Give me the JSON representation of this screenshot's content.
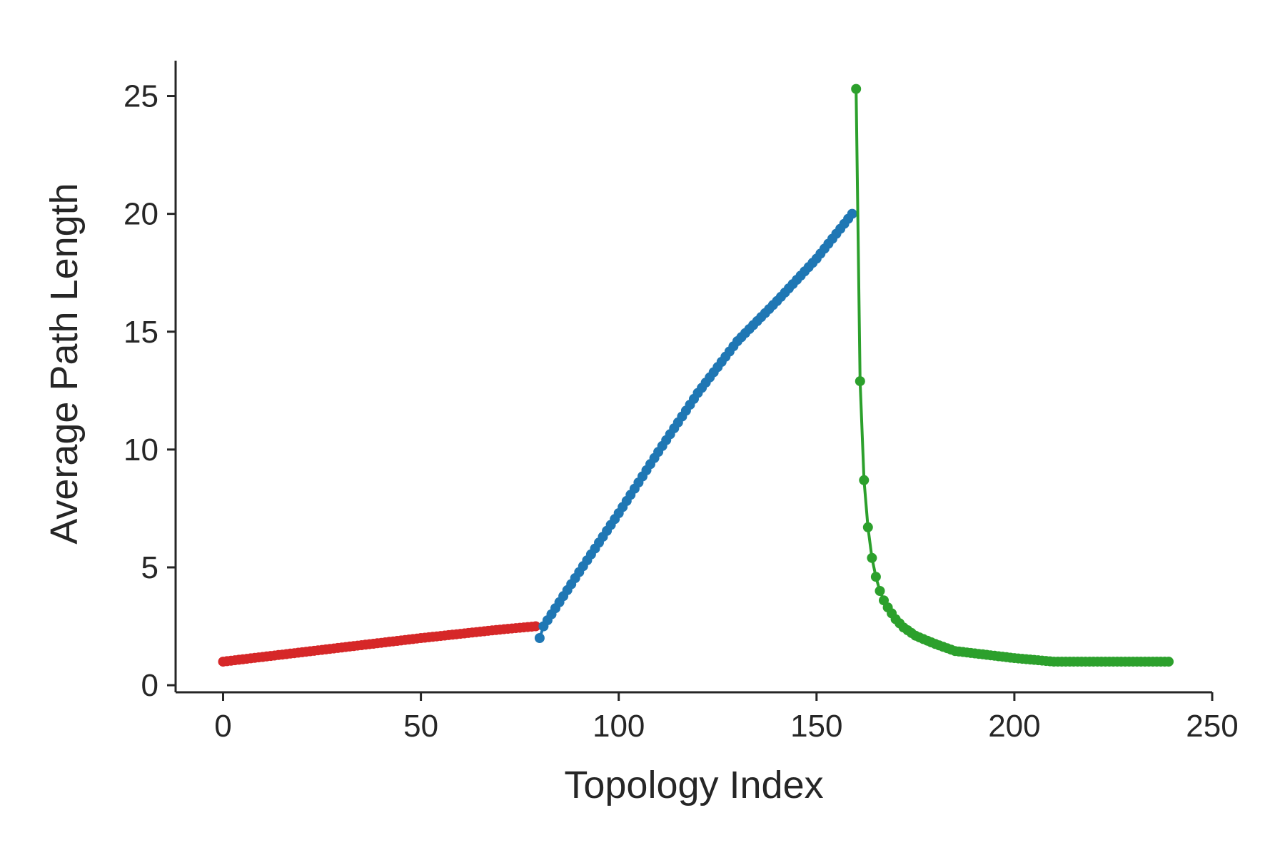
{
  "chart_data": {
    "type": "line",
    "title": "",
    "xlabel": "Topology Index",
    "ylabel": "Average Path Length",
    "xlim": [
      -12,
      250
    ],
    "ylim": [
      -0.3,
      26.5
    ],
    "xticks": [
      0,
      50,
      100,
      150,
      200,
      250
    ],
    "yticks": [
      0,
      5,
      10,
      15,
      20,
      25
    ],
    "xtick_labels": [
      "0",
      "50",
      "100",
      "150",
      "200",
      "250"
    ],
    "ytick_labels": [
      "0",
      "5",
      "10",
      "15",
      "20",
      "25"
    ],
    "grid": false,
    "legend": "none",
    "marker": "circle",
    "series": [
      {
        "color": "#d62728",
        "x": [
          0,
          10,
          20,
          30,
          40,
          50,
          60,
          70,
          79
        ],
        "y": [
          1.0,
          1.2,
          1.4,
          1.6,
          1.8,
          2.0,
          2.18,
          2.36,
          2.5
        ]
      },
      {
        "color": "#1f77b4",
        "x": [
          80,
          81,
          90,
          100,
          110,
          120,
          130,
          140,
          150,
          159
        ],
        "y": [
          2.0,
          2.5,
          4.8,
          7.3,
          9.9,
          12.4,
          14.6,
          16.3,
          18.1,
          20.0
        ]
      },
      {
        "color": "#2ca02c",
        "x": [
          160,
          161,
          162,
          163,
          164,
          165,
          166,
          167,
          168,
          170,
          172,
          175,
          180,
          185,
          190,
          200,
          210,
          220,
          230,
          239
        ],
        "y": [
          25.3,
          12.9,
          8.7,
          6.7,
          5.4,
          4.6,
          4.0,
          3.6,
          3.3,
          2.8,
          2.45,
          2.1,
          1.75,
          1.45,
          1.35,
          1.15,
          1.0,
          1.0,
          1.0,
          1.0
        ]
      }
    ]
  }
}
